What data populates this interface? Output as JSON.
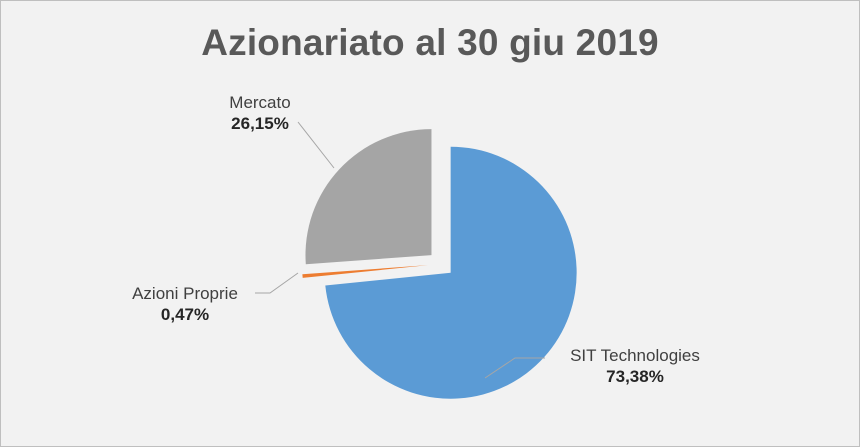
{
  "chart_data": {
    "type": "pie",
    "title": "Azionariato al 30 giu 2019",
    "slices": [
      {
        "name": "SIT Technologies",
        "value": 73.38,
        "label": "73,38%",
        "color": "#5b9bd5"
      },
      {
        "name": "Azioni Proprie",
        "value": 0.47,
        "label": "0,47%",
        "color": "#ed7d31"
      },
      {
        "name": "Mercato",
        "value": 26.15,
        "label": "26,15%",
        "color": "#a5a5a5"
      }
    ],
    "exploded": true,
    "legend": "none",
    "labels": "outside-with-leader-lines"
  }
}
